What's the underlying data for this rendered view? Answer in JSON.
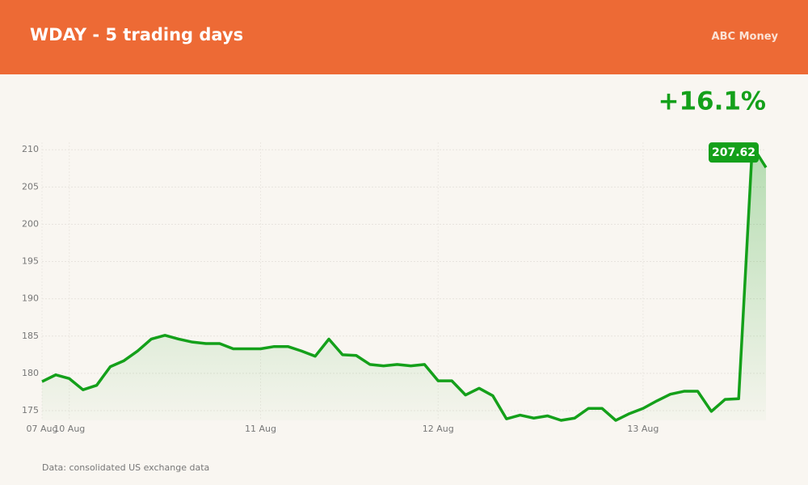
{
  "brand": "ABC Money",
  "chart_data": {
    "type": "line",
    "title": "WDAY - 5 trading days",
    "change": "+16.1%",
    "source": "Data: consolidated US exchange data",
    "categories": [
      "07 Aug",
      null,
      "10 Aug",
      null,
      null,
      null,
      null,
      null,
      null,
      null,
      null,
      null,
      null,
      null,
      null,
      null,
      "11 Aug",
      null,
      null,
      null,
      null,
      null,
      null,
      null,
      null,
      null,
      null,
      null,
      null,
      "12 Aug",
      null,
      null,
      null,
      null,
      null,
      null,
      null,
      null,
      null,
      null,
      null,
      null,
      null,
      null,
      "13 Aug",
      null,
      null,
      null,
      null,
      null,
      null,
      null,
      null,
      null
    ],
    "series": [
      {
        "name": "WDAY",
        "color": "#14a01a",
        "values": [
          178.9,
          179.8,
          179.3,
          177.8,
          178.4,
          180.9,
          181.7,
          183.0,
          184.6,
          185.1,
          184.6,
          184.2,
          184.0,
          184.0,
          183.3,
          183.3,
          183.3,
          183.6,
          183.6,
          183.0,
          182.3,
          184.6,
          182.5,
          182.4,
          181.2,
          181.0,
          181.2,
          181.0,
          181.2,
          179.0,
          179.0,
          177.1,
          178.0,
          177.0,
          173.9,
          174.4,
          174.0,
          174.3,
          173.7,
          174.0,
          175.3,
          175.3,
          173.7,
          174.6,
          175.3,
          176.3,
          177.2,
          177.6,
          177.6,
          174.9,
          176.5,
          176.6,
          210.5,
          207.62
        ]
      }
    ],
    "ylim": [
      173.7,
      211
    ],
    "yticks": [
      175,
      180,
      185,
      190,
      195,
      200,
      205,
      210
    ],
    "grid": true
  }
}
